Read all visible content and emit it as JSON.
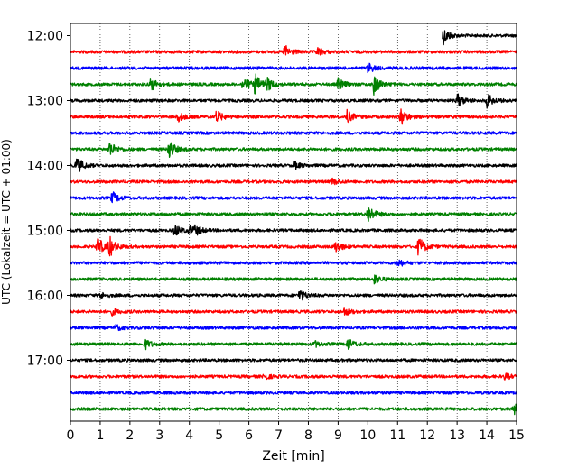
{
  "chart_data": {
    "type": "line",
    "title": "",
    "xlabel": "Zeit  [min]",
    "ylabel": "UTC (Lokalzeit = UTC + 01:00)",
    "xlim": [
      0,
      15
    ],
    "x_ticks": [
      0,
      1,
      2,
      3,
      4,
      5,
      6,
      7,
      8,
      9,
      10,
      11,
      12,
      13,
      14,
      15
    ],
    "y_ticks": [
      "12:00",
      "13:00",
      "14:00",
      "15:00",
      "16:00",
      "17:00"
    ],
    "vertical_grid": true,
    "colors": [
      "#000000",
      "#ff0000",
      "#0000ff",
      "#008000"
    ],
    "trace_interval_min": 15,
    "series": [
      {
        "start": "12:00",
        "color": "#000000",
        "x_start": 12.5,
        "events": [
          {
            "t": 12.5,
            "a": 1.0
          }
        ]
      },
      {
        "start": "12:15",
        "color": "#ff0000",
        "x_start": 0,
        "events": [
          {
            "t": 7.2,
            "a": 0.7
          },
          {
            "t": 8.3,
            "a": 0.4
          }
        ]
      },
      {
        "start": "12:30",
        "color": "#0000ff",
        "x_start": 0,
        "events": [
          {
            "t": 10.0,
            "a": 0.5
          }
        ]
      },
      {
        "start": "12:45",
        "color": "#008000",
        "x_start": 0,
        "events": [
          {
            "t": 2.7,
            "a": 0.7
          },
          {
            "t": 5.8,
            "a": 0.8
          },
          {
            "t": 6.2,
            "a": 1.0
          },
          {
            "t": 6.6,
            "a": 0.6
          },
          {
            "t": 9.0,
            "a": 0.6
          },
          {
            "t": 10.2,
            "a": 1.0
          }
        ]
      },
      {
        "start": "13:00",
        "color": "#000000",
        "x_start": 0,
        "events": [
          {
            "t": 13.0,
            "a": 0.7
          },
          {
            "t": 14.0,
            "a": 0.7
          }
        ]
      },
      {
        "start": "13:15",
        "color": "#ff0000",
        "x_start": 0,
        "events": [
          {
            "t": 3.6,
            "a": 0.5
          },
          {
            "t": 4.9,
            "a": 0.6
          },
          {
            "t": 9.3,
            "a": 0.6
          },
          {
            "t": 11.1,
            "a": 0.9
          }
        ]
      },
      {
        "start": "13:30",
        "color": "#0000ff",
        "x_start": 0,
        "events": []
      },
      {
        "start": "13:45",
        "color": "#008000",
        "x_start": 0,
        "events": [
          {
            "t": 1.3,
            "a": 0.8
          },
          {
            "t": 3.3,
            "a": 1.0
          }
        ]
      },
      {
        "start": "14:00",
        "color": "#000000",
        "x_start": 0,
        "events": [
          {
            "t": 0.2,
            "a": 0.9
          },
          {
            "t": 7.5,
            "a": 0.4
          }
        ]
      },
      {
        "start": "14:15",
        "color": "#ff0000",
        "x_start": 0,
        "events": [
          {
            "t": 8.8,
            "a": 0.3
          }
        ]
      },
      {
        "start": "14:30",
        "color": "#0000ff",
        "x_start": 0,
        "events": [
          {
            "t": 1.4,
            "a": 0.6
          }
        ]
      },
      {
        "start": "14:45",
        "color": "#008000",
        "x_start": 0,
        "events": [
          {
            "t": 10.0,
            "a": 0.9
          }
        ]
      },
      {
        "start": "15:00",
        "color": "#000000",
        "x_start": 0,
        "events": [
          {
            "t": 3.5,
            "a": 0.6
          },
          {
            "t": 4.0,
            "a": 0.4
          },
          {
            "t": 4.2,
            "a": 0.4
          }
        ]
      },
      {
        "start": "15:15",
        "color": "#ff0000",
        "x_start": 0,
        "events": [
          {
            "t": 0.9,
            "a": 1.0
          },
          {
            "t": 1.3,
            "a": 1.0
          },
          {
            "t": 8.9,
            "a": 0.6
          },
          {
            "t": 11.7,
            "a": 1.0
          }
        ]
      },
      {
        "start": "15:30",
        "color": "#0000ff",
        "x_start": 0,
        "events": [
          {
            "t": 11.0,
            "a": 0.4
          }
        ]
      },
      {
        "start": "15:45",
        "color": "#008000",
        "x_start": 0,
        "events": [
          {
            "t": 10.2,
            "a": 0.5
          }
        ]
      },
      {
        "start": "16:00",
        "color": "#000000",
        "x_start": 0,
        "events": [
          {
            "t": 1.0,
            "a": 0.3
          },
          {
            "t": 7.7,
            "a": 0.6
          }
        ]
      },
      {
        "start": "16:15",
        "color": "#ff0000",
        "x_start": 0,
        "events": [
          {
            "t": 1.4,
            "a": 0.3
          },
          {
            "t": 9.2,
            "a": 0.4
          }
        ]
      },
      {
        "start": "16:30",
        "color": "#0000ff",
        "x_start": 0,
        "events": [
          {
            "t": 1.5,
            "a": 0.3
          }
        ]
      },
      {
        "start": "16:45",
        "color": "#008000",
        "x_start": 0,
        "events": [
          {
            "t": 2.5,
            "a": 0.5
          },
          {
            "t": 8.2,
            "a": 0.3
          },
          {
            "t": 9.3,
            "a": 0.6
          }
        ]
      },
      {
        "start": "17:00",
        "color": "#000000",
        "x_start": 0,
        "events": []
      },
      {
        "start": "17:15",
        "color": "#ff0000",
        "x_start": 0,
        "events": [
          {
            "t": 6.5,
            "a": 0.3
          },
          {
            "t": 14.6,
            "a": 0.3
          }
        ]
      },
      {
        "start": "17:30",
        "color": "#0000ff",
        "x_start": 0,
        "events": []
      },
      {
        "start": "17:45",
        "color": "#008000",
        "x_start": 0,
        "events": [
          {
            "t": 14.9,
            "a": 0.5
          }
        ]
      }
    ]
  }
}
